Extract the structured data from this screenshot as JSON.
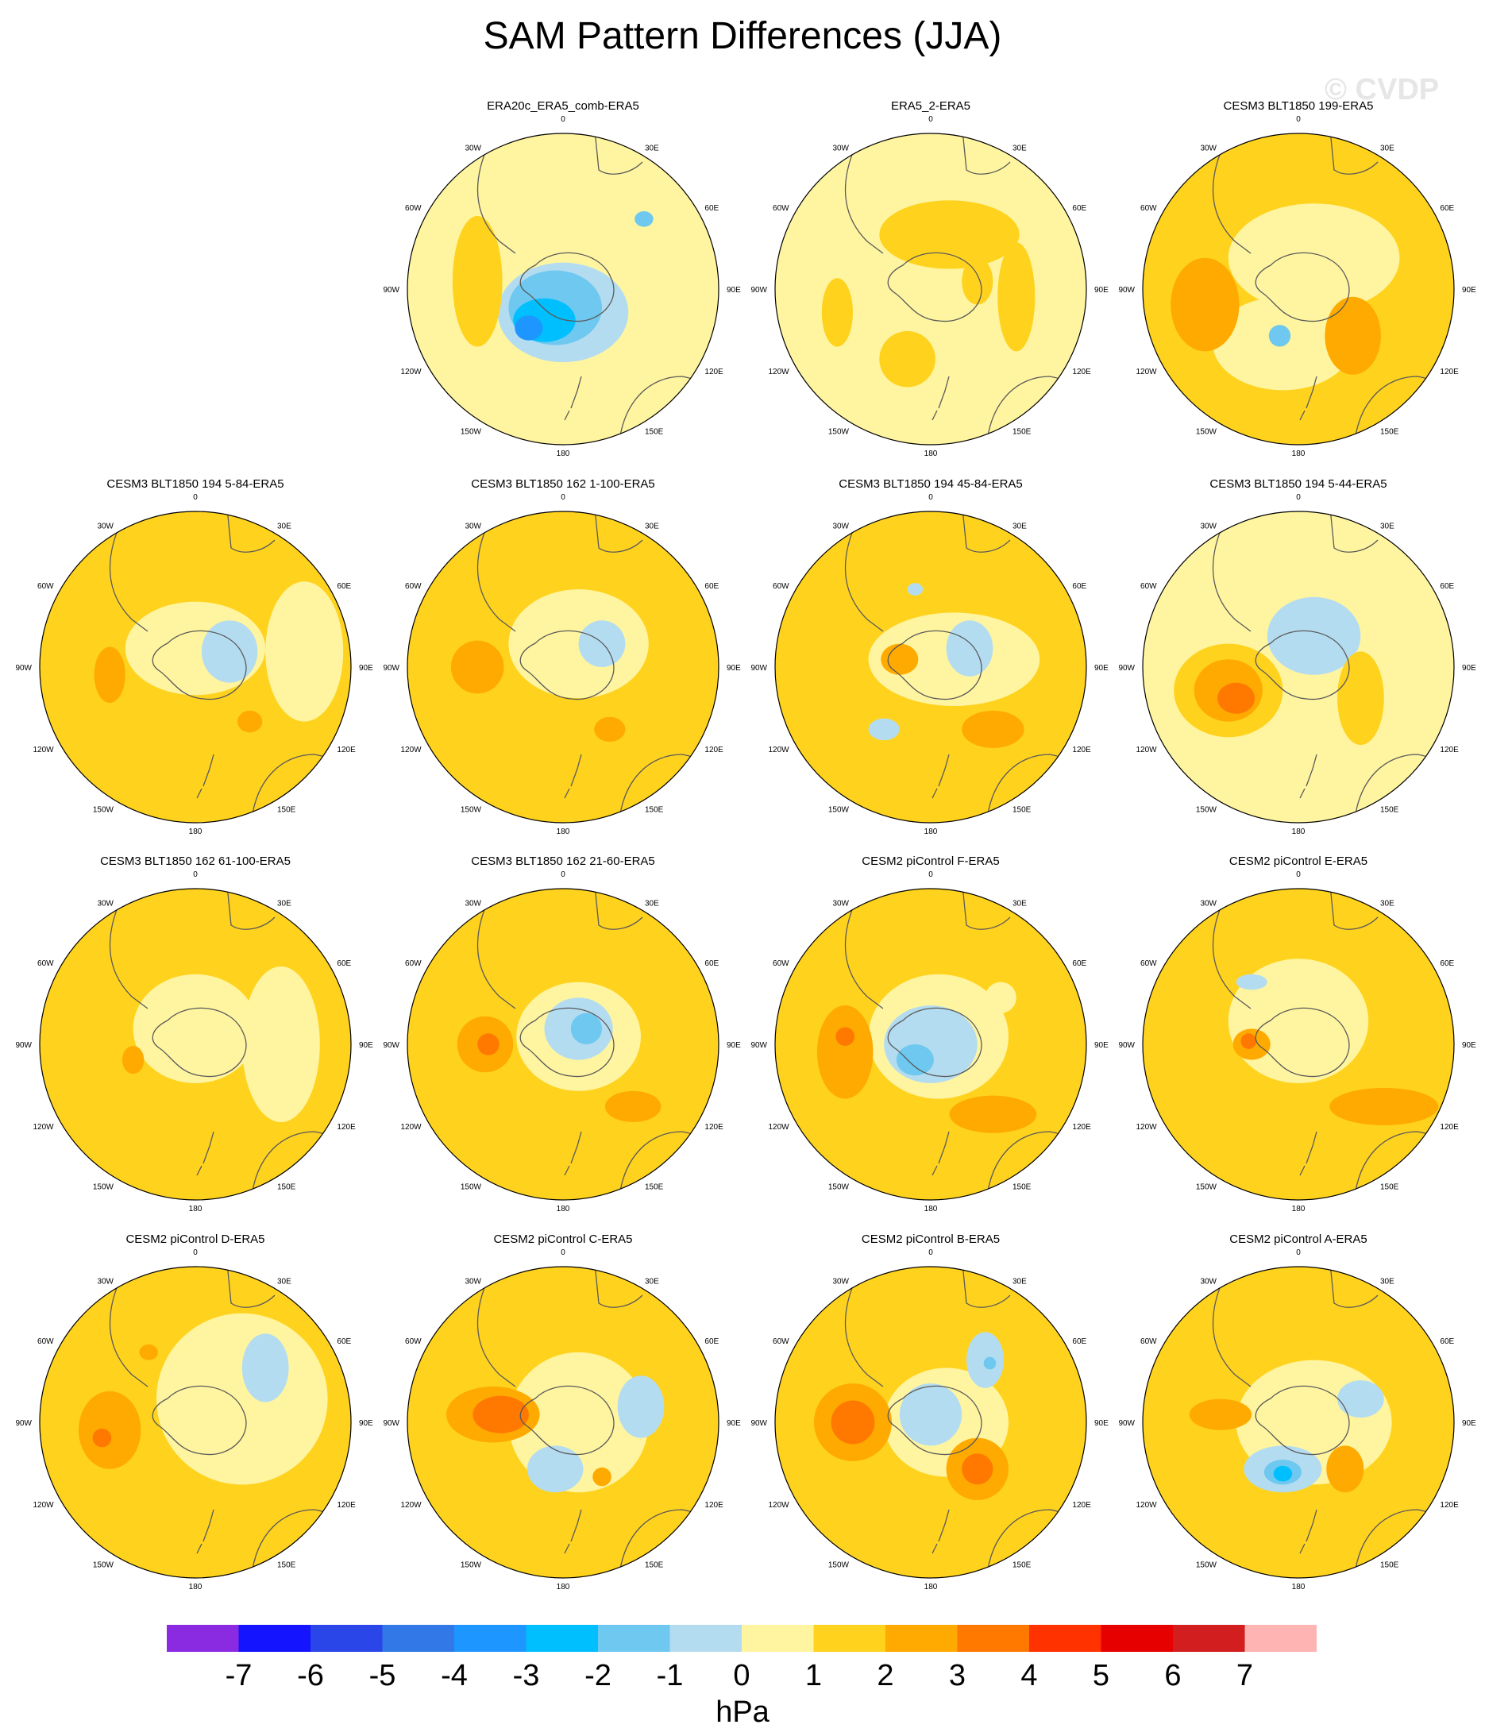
{
  "title": "SAM Pattern Differences (JJA)",
  "watermark": "© CVDP",
  "colors": {
    "levels": [
      "#8a2be2",
      "#1414ff",
      "#2a46e8",
      "#3278e6",
      "#1e96ff",
      "#00bfff",
      "#6ec8f0",
      "#b4dcf0",
      "#fff5a0",
      "#ffd21e",
      "#ffaa00",
      "#ff7800",
      "#ff3200",
      "#e60000",
      "#d21e1e",
      "#ffb4b4"
    ],
    "coast": "#5a5a5a"
  },
  "panel_labels": {
    "top": "0",
    "bottom": "180",
    "left": [
      "30W",
      "60W",
      "90W",
      "120W",
      "150W"
    ],
    "right": [
      "30E",
      "60E",
      "90E",
      "120E",
      "150E"
    ]
  },
  "panels": [
    {
      "title": "ERA20c_ERA5_comb-ERA5",
      "bg": 0,
      "blobs": [
        [
          0.0,
          -0.15,
          0.42,
          0.32,
          -1
        ],
        [
          -0.05,
          -0.12,
          0.3,
          0.24,
          -2
        ],
        [
          -0.12,
          -0.2,
          0.2,
          0.14,
          -3
        ],
        [
          -0.22,
          -0.25,
          0.09,
          0.08,
          -4
        ],
        [
          -0.55,
          0.05,
          0.16,
          0.42,
          1
        ],
        [
          0.52,
          0.45,
          0.06,
          0.05,
          -2
        ]
      ]
    },
    {
      "title": "ERA5_2-ERA5",
      "bg": 0,
      "blobs": [
        [
          0.12,
          0.35,
          0.45,
          0.22,
          1
        ],
        [
          0.55,
          -0.05,
          0.12,
          0.35,
          1
        ],
        [
          -0.6,
          -0.15,
          0.1,
          0.22,
          1
        ],
        [
          -0.15,
          -0.45,
          0.18,
          0.18,
          1
        ],
        [
          0.3,
          0.05,
          0.1,
          0.15,
          1
        ]
      ]
    },
    {
      "title": "CESM3 BLT1850 199-ERA5",
      "bg": 1,
      "blobs": [
        [
          0.1,
          0.2,
          0.55,
          0.35,
          0
        ],
        [
          -0.1,
          -0.35,
          0.45,
          0.3,
          0
        ],
        [
          -0.6,
          -0.1,
          0.22,
          0.3,
          2
        ],
        [
          0.35,
          -0.3,
          0.18,
          0.25,
          2
        ],
        [
          -0.12,
          -0.3,
          0.07,
          0.07,
          -2
        ]
      ]
    },
    {
      "title": "CESM3 BLT1850 194 5-84-ERA5",
      "bg": 1,
      "blobs": [
        [
          0.0,
          0.12,
          0.45,
          0.3,
          0
        ],
        [
          0.22,
          0.1,
          0.18,
          0.2,
          -1
        ],
        [
          -0.55,
          -0.05,
          0.1,
          0.18,
          2
        ],
        [
          0.35,
          -0.35,
          0.08,
          0.07,
          2
        ],
        [
          0.7,
          0.1,
          0.25,
          0.45,
          0
        ]
      ]
    },
    {
      "title": "CESM3 BLT1850 162 1-100-ERA5",
      "bg": 1,
      "blobs": [
        [
          0.1,
          0.15,
          0.45,
          0.35,
          0
        ],
        [
          0.25,
          0.15,
          0.15,
          0.15,
          -1
        ],
        [
          -0.55,
          0.0,
          0.17,
          0.17,
          2
        ],
        [
          0.3,
          -0.4,
          0.1,
          0.08,
          2
        ]
      ]
    },
    {
      "title": "CESM3 BLT1850 194 45-84-ERA5",
      "bg": 1,
      "blobs": [
        [
          0.15,
          0.05,
          0.55,
          0.3,
          0
        ],
        [
          0.25,
          0.12,
          0.15,
          0.18,
          -1
        ],
        [
          -0.2,
          0.05,
          0.12,
          0.1,
          2
        ],
        [
          0.4,
          -0.4,
          0.2,
          0.12,
          2
        ],
        [
          -0.3,
          -0.4,
          0.1,
          0.07,
          -1
        ],
        [
          -0.1,
          0.5,
          0.05,
          0.04,
          -1
        ]
      ]
    },
    {
      "title": "CESM3 BLT1850 194 5-44-ERA5",
      "bg": 0,
      "blobs": [
        [
          -0.45,
          -0.15,
          0.35,
          0.3,
          1
        ],
        [
          -0.45,
          -0.15,
          0.22,
          0.2,
          2
        ],
        [
          -0.4,
          -0.2,
          0.12,
          0.1,
          3
        ],
        [
          0.1,
          0.2,
          0.3,
          0.25,
          -1
        ],
        [
          0.4,
          -0.2,
          0.15,
          0.3,
          1
        ]
      ]
    },
    {
      "title": "CESM3 BLT1850 162 61-100-ERA5",
      "bg": 1,
      "blobs": [
        [
          0.0,
          0.1,
          0.4,
          0.35,
          0
        ],
        [
          0.55,
          0.0,
          0.25,
          0.5,
          0
        ],
        [
          -0.4,
          -0.1,
          0.07,
          0.09,
          2
        ]
      ]
    },
    {
      "title": "CESM3 BLT1850 162 21-60-ERA5",
      "bg": 1,
      "blobs": [
        [
          0.1,
          0.05,
          0.4,
          0.35,
          0
        ],
        [
          0.1,
          0.1,
          0.22,
          0.2,
          -1
        ],
        [
          0.15,
          0.1,
          0.1,
          0.1,
          -2
        ],
        [
          -0.5,
          0.0,
          0.18,
          0.18,
          2
        ],
        [
          -0.48,
          0.0,
          0.07,
          0.07,
          3
        ],
        [
          0.45,
          -0.4,
          0.18,
          0.1,
          2
        ]
      ]
    },
    {
      "title": "CESM2 piControl F-ERA5",
      "bg": 1,
      "blobs": [
        [
          0.05,
          0.05,
          0.45,
          0.4,
          0
        ],
        [
          0.0,
          0.0,
          0.3,
          0.25,
          -1
        ],
        [
          -0.1,
          -0.1,
          0.12,
          0.1,
          -2
        ],
        [
          -0.55,
          -0.05,
          0.18,
          0.3,
          2
        ],
        [
          -0.55,
          0.05,
          0.06,
          0.06,
          3
        ],
        [
          0.4,
          -0.45,
          0.28,
          0.12,
          2
        ],
        [
          0.45,
          0.3,
          0.1,
          0.1,
          0
        ]
      ]
    },
    {
      "title": "CESM2 piControl E-ERA5",
      "bg": 1,
      "blobs": [
        [
          0.0,
          0.15,
          0.45,
          0.4,
          0
        ],
        [
          -0.3,
          0.0,
          0.12,
          0.1,
          2
        ],
        [
          -0.32,
          0.02,
          0.05,
          0.05,
          3
        ],
        [
          0.55,
          -0.4,
          0.35,
          0.12,
          2
        ],
        [
          -0.3,
          0.4,
          0.1,
          0.05,
          -1
        ]
      ]
    },
    {
      "title": "CESM2 piControl D-ERA5",
      "bg": 1,
      "blobs": [
        [
          0.3,
          0.15,
          0.55,
          0.55,
          0
        ],
        [
          0.45,
          0.35,
          0.15,
          0.22,
          -1
        ],
        [
          -0.55,
          -0.05,
          0.2,
          0.25,
          2
        ],
        [
          -0.6,
          -0.1,
          0.06,
          0.06,
          3
        ],
        [
          -0.3,
          0.45,
          0.06,
          0.05,
          2
        ]
      ]
    },
    {
      "title": "CESM2 piControl C-ERA5",
      "bg": 1,
      "blobs": [
        [
          0.1,
          0.0,
          0.45,
          0.45,
          0
        ],
        [
          -0.45,
          0.05,
          0.3,
          0.18,
          2
        ],
        [
          -0.4,
          0.05,
          0.18,
          0.12,
          3
        ],
        [
          0.5,
          0.1,
          0.15,
          0.2,
          -1
        ],
        [
          -0.05,
          -0.3,
          0.18,
          0.15,
          -1
        ],
        [
          0.25,
          -0.35,
          0.06,
          0.06,
          2
        ]
      ]
    },
    {
      "title": "CESM2 piControl B-ERA5",
      "bg": 1,
      "blobs": [
        [
          0.1,
          0.0,
          0.4,
          0.35,
          0
        ],
        [
          -0.5,
          0.0,
          0.25,
          0.25,
          2
        ],
        [
          -0.5,
          0.0,
          0.14,
          0.14,
          3
        ],
        [
          0.3,
          -0.3,
          0.2,
          0.2,
          2
        ],
        [
          0.3,
          -0.3,
          0.1,
          0.1,
          3
        ],
        [
          0.35,
          0.4,
          0.12,
          0.18,
          -1
        ],
        [
          0.38,
          0.38,
          0.04,
          0.04,
          -2
        ],
        [
          0.0,
          0.05,
          0.2,
          0.2,
          -1
        ]
      ]
    },
    {
      "title": "CESM2 piControl A-ERA5",
      "bg": 1,
      "blobs": [
        [
          0.1,
          0.0,
          0.5,
          0.4,
          0
        ],
        [
          -0.1,
          -0.3,
          0.25,
          0.15,
          -1
        ],
        [
          -0.1,
          -0.32,
          0.12,
          0.08,
          -2
        ],
        [
          -0.1,
          -0.33,
          0.06,
          0.05,
          -3
        ],
        [
          0.3,
          -0.3,
          0.12,
          0.15,
          2
        ],
        [
          -0.5,
          0.05,
          0.2,
          0.1,
          2
        ],
        [
          0.4,
          0.15,
          0.15,
          0.12,
          -1
        ]
      ]
    }
  ],
  "colorbar": {
    "ticks": [
      "-7",
      "-6",
      "-5",
      "-4",
      "-3",
      "-2",
      "-1",
      "0",
      "1",
      "2",
      "3",
      "4",
      "5",
      "6",
      "7"
    ],
    "unit": "hPa"
  }
}
